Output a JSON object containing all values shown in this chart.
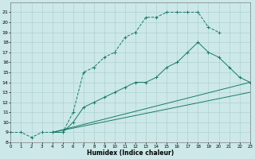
{
  "xlabel": "Humidex (Indice chaleur)",
  "xlim": [
    0,
    23
  ],
  "ylim": [
    8,
    22
  ],
  "yticks": [
    8,
    9,
    10,
    11,
    12,
    13,
    14,
    15,
    16,
    17,
    18,
    19,
    20,
    21
  ],
  "xticks": [
    0,
    1,
    2,
    3,
    4,
    5,
    6,
    7,
    8,
    9,
    10,
    11,
    12,
    13,
    14,
    15,
    16,
    17,
    18,
    19,
    20,
    21,
    22,
    23
  ],
  "bg_color": "#cce8e8",
  "line_color": "#1a7a6a",
  "line1_x": [
    0,
    1,
    2,
    3,
    4,
    5,
    6,
    7,
    8,
    9,
    10,
    11,
    12,
    13,
    14,
    15,
    16,
    17,
    18,
    19,
    20
  ],
  "line1_y": [
    9,
    9,
    8.5,
    9,
    9,
    9,
    11,
    15,
    15.5,
    16.5,
    17,
    18.5,
    19,
    20.5,
    20.5,
    21,
    21,
    21,
    21,
    19.5,
    19
  ],
  "line2_x": [
    4,
    5,
    6,
    7,
    8,
    9,
    10,
    11,
    12,
    13,
    14,
    15,
    16,
    17,
    18,
    19,
    20,
    21,
    22,
    23
  ],
  "line2_y": [
    9,
    9,
    10,
    11.5,
    12,
    12.5,
    13,
    13.5,
    14,
    14,
    14.5,
    15.5,
    16,
    17,
    18,
    17,
    16.5,
    15.5,
    14.5,
    14
  ],
  "line3_x": [
    4,
    23
  ],
  "line3_y": [
    9,
    14
  ],
  "line4_x": [
    4,
    23
  ],
  "line4_y": [
    9,
    13.0
  ]
}
